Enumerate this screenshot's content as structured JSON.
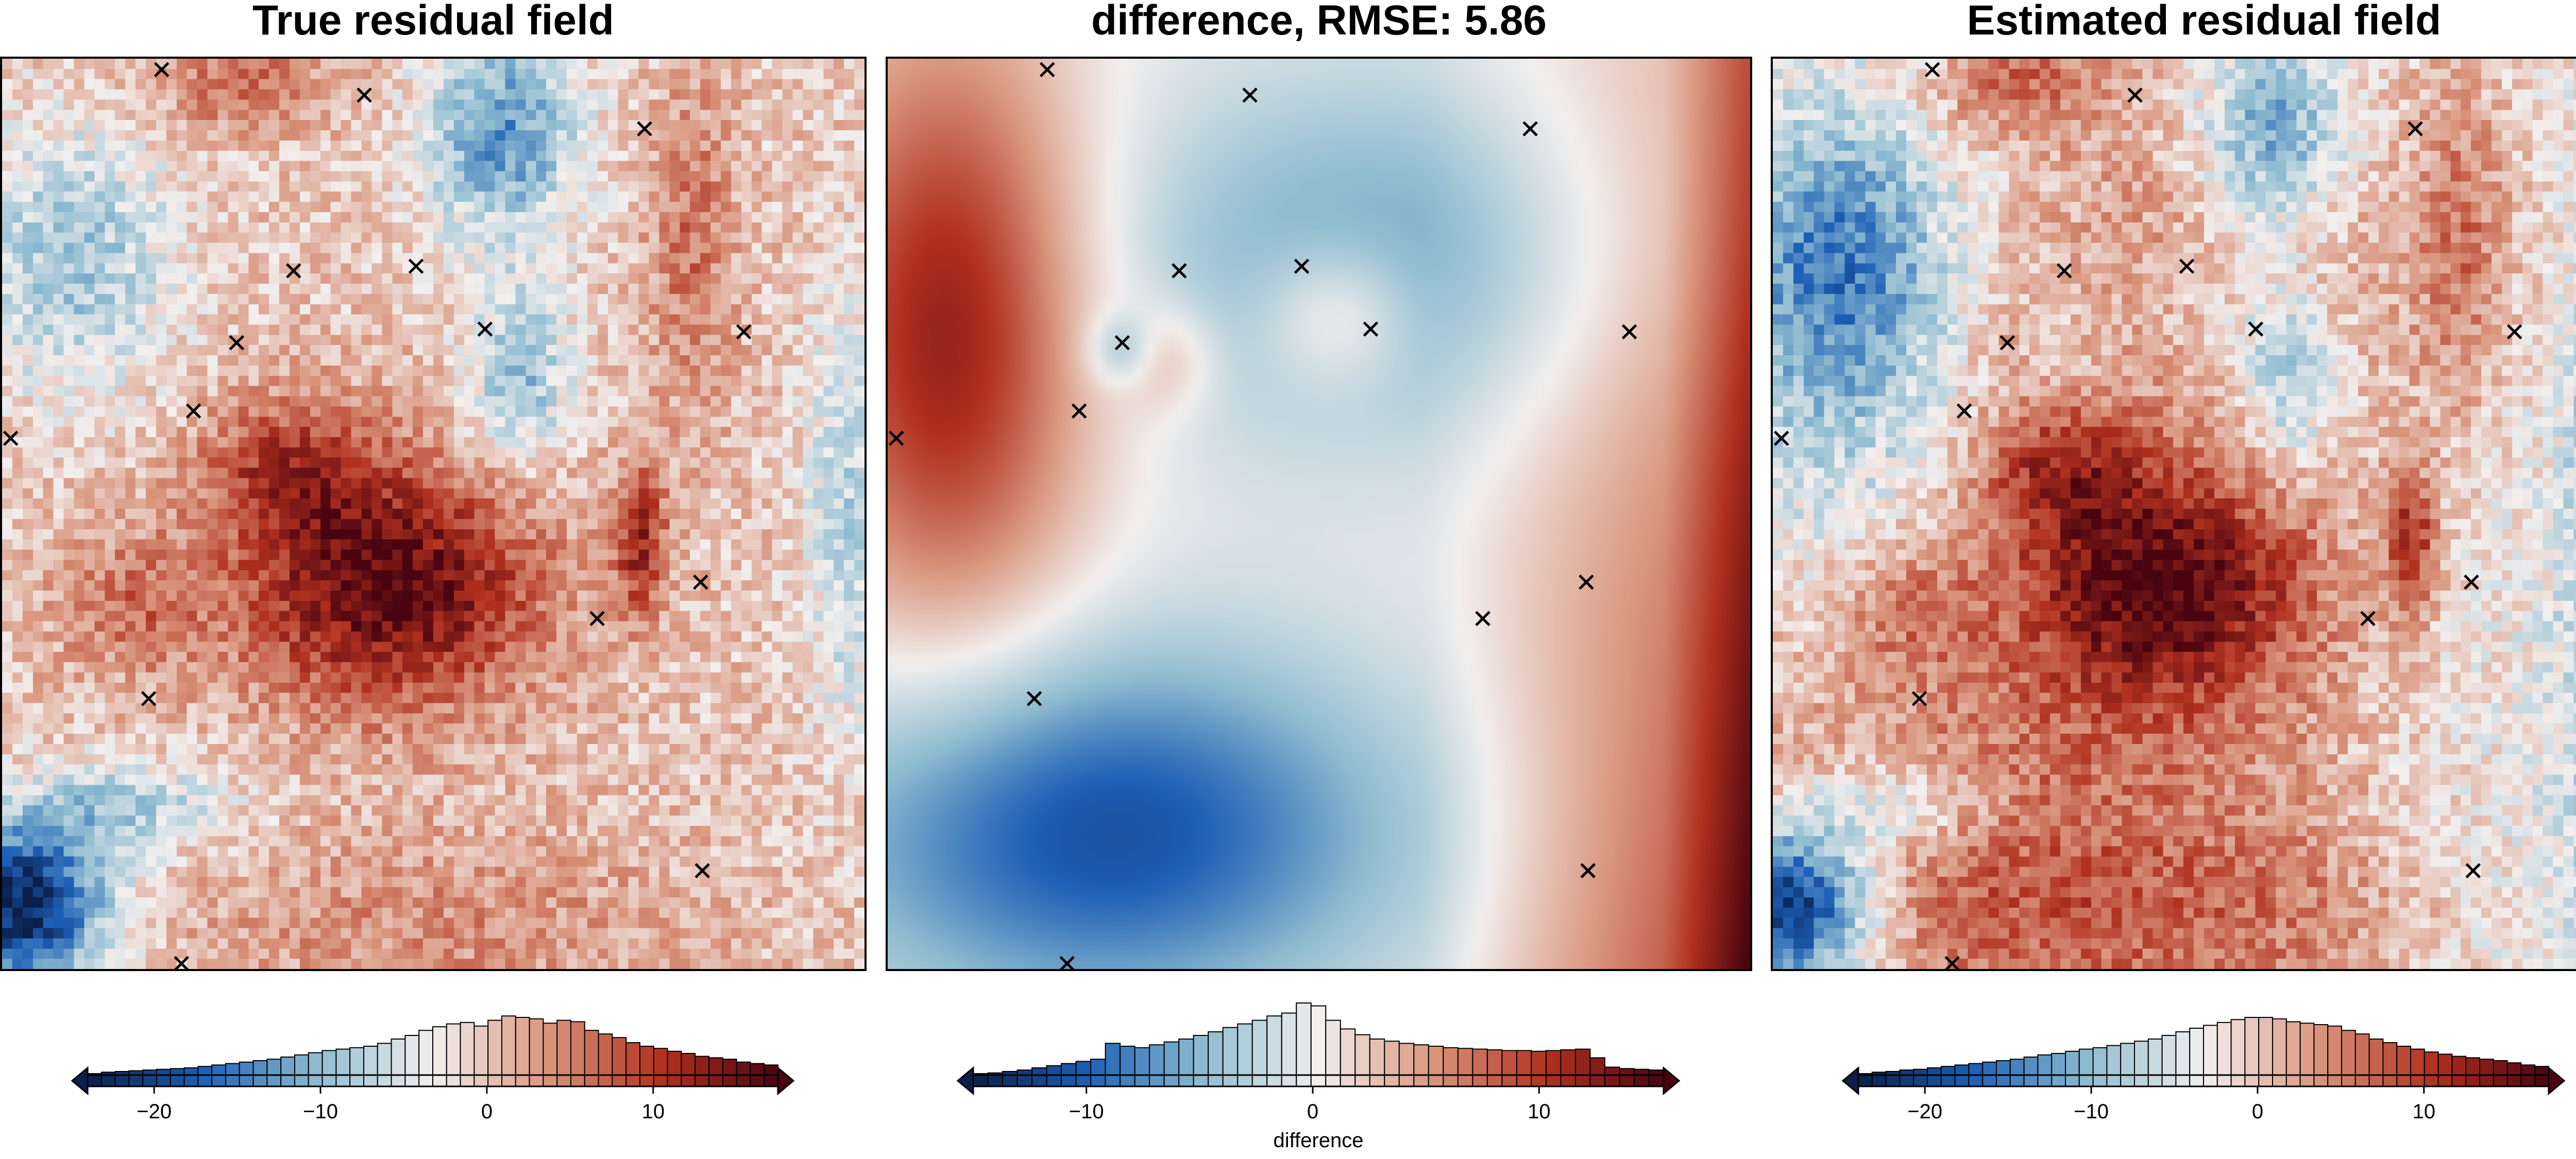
{
  "panels": [
    {
      "id": "true",
      "title": "True residual field",
      "colorbar": {
        "min": -24,
        "max": 17.5,
        "ticks": [
          -20,
          -10,
          0,
          10
        ],
        "label": ""
      }
    },
    {
      "id": "diff",
      "title": "difference, RMSE: 5.86",
      "colorbar": {
        "min": -15,
        "max": 15.5,
        "ticks": [
          -10,
          0,
          10
        ],
        "label": "difference"
      }
    },
    {
      "id": "est",
      "title": "Estimated residual field",
      "colorbar": {
        "min": -24,
        "max": 17.5,
        "ticks": [
          -20,
          -10,
          0,
          10
        ],
        "label": ""
      }
    }
  ],
  "chart_data": [
    {
      "type": "heatmap",
      "title": "True residual field",
      "colormap": "diverging blue-white-red (vik)",
      "colormap_stops": [
        "#0b1f4a",
        "#1d5fb6",
        "#8fbcd0",
        "#f2efee",
        "#d9957d",
        "#b0301e",
        "#4a0410"
      ],
      "vmin": -24,
      "vmax": 17.5,
      "colorbar_ticks": [
        -20,
        -10,
        0,
        10
      ],
      "colorbar_histogram": [
        0.02,
        0.04,
        0.05,
        0.06,
        0.07,
        0.08,
        0.09,
        0.1,
        0.12,
        0.14,
        0.16,
        0.18,
        0.2,
        0.22,
        0.25,
        0.28,
        0.31,
        0.34,
        0.36,
        0.38,
        0.4,
        0.44,
        0.5,
        0.55,
        0.62,
        0.67,
        0.71,
        0.73,
        0.68,
        0.76,
        0.82,
        0.8,
        0.78,
        0.72,
        0.76,
        0.74,
        0.62,
        0.57,
        0.52,
        0.45,
        0.4,
        0.37,
        0.33,
        0.3,
        0.26,
        0.24,
        0.22,
        0.18,
        0.16,
        0.14
      ]
    },
    {
      "type": "heatmap",
      "title": "difference, RMSE: 5.86",
      "colormap": "diverging blue-white-red (vik)",
      "colormap_stops": [
        "#0b1f4a",
        "#1d5fb6",
        "#8fbcd0",
        "#f2efee",
        "#d9957d",
        "#b0301e",
        "#4a0410"
      ],
      "vmin": -15,
      "vmax": 15.5,
      "colorbar_ticks": [
        -10,
        0,
        10
      ],
      "colorbar_label": "difference",
      "colorbar_histogram": [
        0.02,
        0.03,
        0.05,
        0.07,
        0.1,
        0.13,
        0.16,
        0.19,
        0.22,
        0.44,
        0.4,
        0.38,
        0.42,
        0.46,
        0.5,
        0.55,
        0.6,
        0.66,
        0.71,
        0.76,
        0.82,
        0.86,
        1.0,
        0.96,
        0.76,
        0.64,
        0.56,
        0.5,
        0.47,
        0.44,
        0.42,
        0.4,
        0.38,
        0.37,
        0.36,
        0.35,
        0.34,
        0.34,
        0.33,
        0.34,
        0.35,
        0.36,
        0.24,
        0.11,
        0.09,
        0.08,
        0.07
      ]
    },
    {
      "type": "heatmap",
      "title": "Estimated residual field",
      "colormap": "diverging blue-white-red (vik)",
      "colormap_stops": [
        "#0b1f4a",
        "#1d5fb6",
        "#8fbcd0",
        "#f2efee",
        "#d9957d",
        "#b0301e",
        "#4a0410"
      ],
      "vmin": -24,
      "vmax": 17.5,
      "colorbar_ticks": [
        -20,
        -10,
        0,
        10
      ],
      "colorbar_histogram": [
        0.02,
        0.04,
        0.05,
        0.07,
        0.08,
        0.1,
        0.12,
        0.14,
        0.16,
        0.18,
        0.2,
        0.22,
        0.25,
        0.28,
        0.3,
        0.33,
        0.36,
        0.38,
        0.41,
        0.44,
        0.47,
        0.5,
        0.55,
        0.6,
        0.65,
        0.69,
        0.73,
        0.77,
        0.8,
        0.8,
        0.78,
        0.74,
        0.72,
        0.7,
        0.68,
        0.62,
        0.57,
        0.5,
        0.45,
        0.4,
        0.36,
        0.32,
        0.29,
        0.26,
        0.24,
        0.22,
        0.2,
        0.17,
        0.14,
        0.12
      ]
    }
  ],
  "markers": {
    "symbol": "x",
    "points": [
      [
        0.185,
        0.012
      ],
      [
        0.42,
        0.04
      ],
      [
        0.745,
        0.077
      ],
      [
        0.338,
        0.233
      ],
      [
        0.48,
        0.228
      ],
      [
        0.272,
        0.312
      ],
      [
        0.56,
        0.297
      ],
      [
        0.86,
        0.3
      ],
      [
        0.222,
        0.387
      ],
      [
        0.01,
        0.417
      ],
      [
        0.81,
        0.575
      ],
      [
        0.69,
        0.615
      ],
      [
        0.17,
        0.703
      ],
      [
        0.812,
        0.892
      ],
      [
        0.208,
        0.994
      ]
    ]
  }
}
